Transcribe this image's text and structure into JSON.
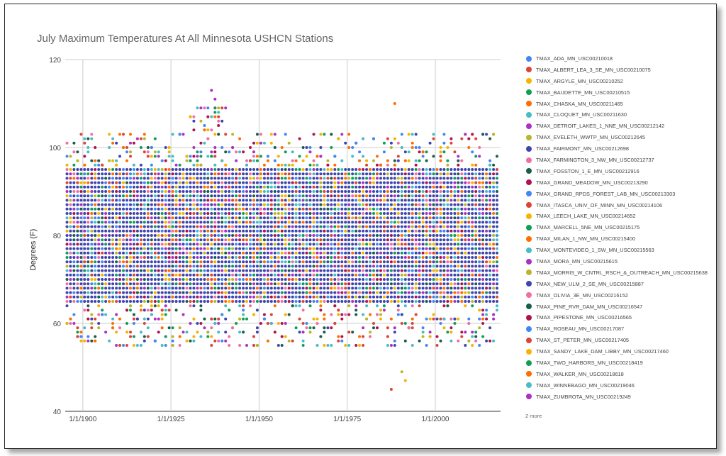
{
  "chart_data": {
    "type": "scatter",
    "title": "July Maximum Temperatures At All Minnesota USHCN Stations",
    "ylabel": "Degrees (F)",
    "xlabel": "",
    "x_range": [
      "1895-01-01",
      "2018-07-01"
    ],
    "ylim": [
      40,
      120
    ],
    "y_ticks": [
      "40",
      "60",
      "80",
      "100",
      "120"
    ],
    "x_ticks": [
      {
        "label": "1/1/1900",
        "year": 1900
      },
      {
        "label": "1/1/1925",
        "year": 1925
      },
      {
        "label": "1/1/1950",
        "year": 1950
      },
      {
        "label": "1/1/1975",
        "year": 1975
      },
      {
        "label": "1/1/2000",
        "year": 2000
      }
    ],
    "grid": true,
    "legend_position": "right",
    "legend_more": "2 more",
    "series": [
      {
        "name": "TMAX_ADA_MN_USC00210018",
        "color": "#4285f4"
      },
      {
        "name": "TMAX_ALBERT_LEA_3_SE_MN_USC00210075",
        "color": "#db4437"
      },
      {
        "name": "TMAX_ARGYLE_MN_USC00210252",
        "color": "#f4b400"
      },
      {
        "name": "TMAX_BAUDETTE_MN_USC00210515",
        "color": "#0f9d58"
      },
      {
        "name": "TMAX_CHASKA_MN_USC00211465",
        "color": "#ff6d00"
      },
      {
        "name": "TMAX_CLOQUET_MN_USC00211630",
        "color": "#46bdc6"
      },
      {
        "name": "TMAX_DETROIT_LAKES_1_NNE_MN_USC00212142",
        "color": "#ab30c4"
      },
      {
        "name": "TMAX_EVELETH_WWTP_MN_USC00212645",
        "color": "#b7b72c"
      },
      {
        "name": "TMAX_FAIRMONT_MN_USC00212698",
        "color": "#3f45ad"
      },
      {
        "name": "TMAX_FARMINGTON_3_NW_MN_USC00212737",
        "color": "#f06ea4"
      },
      {
        "name": "TMAX_FOSSTON_1_E_MN_USC00212916",
        "color": "#185f4a"
      },
      {
        "name": "TMAX_GRAND_MEADOW_MN_USC00213290",
        "color": "#b0124f"
      },
      {
        "name": "TMAX_GRAND_RPDS_FOREST_LAB_MN_USC00213303",
        "color": "#4285f4"
      },
      {
        "name": "TMAX_ITASCA_UNIV_OF_MINN_MN_USC00214106",
        "color": "#db4437"
      },
      {
        "name": "TMAX_LEECH_LAKE_MN_USC00214652",
        "color": "#f4b400"
      },
      {
        "name": "TMAX_MARCELL_5NE_MN_USC00215175",
        "color": "#0f9d58"
      },
      {
        "name": "TMAX_MILAN_1_NW_MN_USC00215400",
        "color": "#ff6d00"
      },
      {
        "name": "TMAX_MONTEVIDEO_1_SW_MN_USC00215563",
        "color": "#46bdc6"
      },
      {
        "name": "TMAX_MORA_MN_USC00215615",
        "color": "#ab30c4"
      },
      {
        "name": "TMAX_MORRIS_W_CNTRL_RSCH_&_OUTREACH_MN_USC00215638",
        "color": "#b7b72c"
      },
      {
        "name": "TMAX_NEW_ULM_2_SE_MN_USC00215887",
        "color": "#3f45ad"
      },
      {
        "name": "TMAX_OLIVIA_3E_MN_USC00216152",
        "color": "#f06ea4"
      },
      {
        "name": "TMAX_PINE_RVR_DAM_MN_USC00216547",
        "color": "#185f4a"
      },
      {
        "name": "TMAX_PIPESTONE_MN_USC00216565",
        "color": "#b0124f"
      },
      {
        "name": "TMAX_ROSEAU_MN_USC00217087",
        "color": "#4285f4"
      },
      {
        "name": "TMAX_ST_PETER_MN_USC00217405",
        "color": "#db4437"
      },
      {
        "name": "TMAX_SANDY_LAKE_DAM_LIBBY_MN_USC00217460",
        "color": "#f4b400"
      },
      {
        "name": "TMAX_TWO_HARBORS_MN_USC00218419",
        "color": "#0f9d58"
      },
      {
        "name": "TMAX_WALKER_MN_USC00218618",
        "color": "#ff6d00"
      },
      {
        "name": "TMAX_WINNEBAGO_MN_USC00219046",
        "color": "#46bdc6"
      },
      {
        "name": "TMAX_ZUMBROTA_MN_USC00219249",
        "color": "#ab30c4"
      }
    ],
    "values_summary": {
      "dense_band_deg_f": [
        65,
        95
      ],
      "typical_max_deg_f": 100,
      "highest_points": [
        {
          "year": 1936,
          "value": 113
        },
        {
          "year": 1937,
          "value": 111
        },
        {
          "year": 1988,
          "value": 110
        }
      ],
      "lowest_points": [
        {
          "year": 1987,
          "value": 45
        },
        {
          "year": 1991,
          "value": 47
        },
        {
          "year": 1990,
          "value": 49
        }
      ]
    }
  }
}
